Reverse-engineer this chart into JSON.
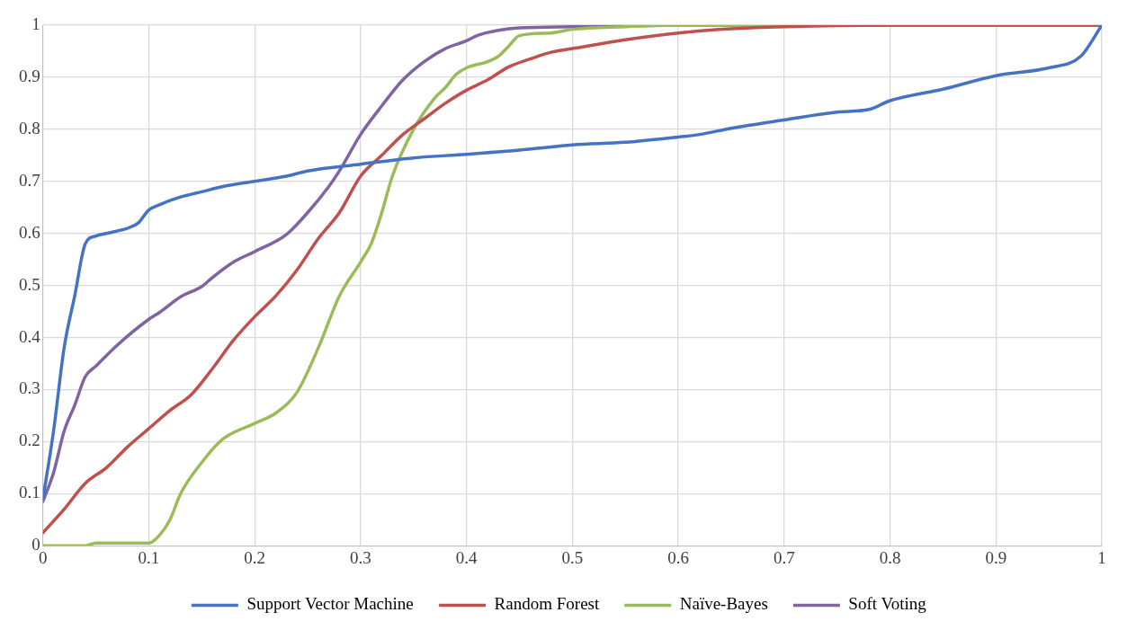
{
  "chart_data": {
    "type": "line",
    "xlim": [
      0,
      1
    ],
    "ylim": [
      0,
      1
    ],
    "xticks": [
      0,
      0.1,
      0.2,
      0.3,
      0.4,
      0.5,
      0.6,
      0.7,
      0.8,
      0.9,
      1
    ],
    "yticks": [
      0,
      0.1,
      0.2,
      0.3,
      0.4,
      0.5,
      0.6,
      0.7,
      0.8,
      0.9,
      1
    ],
    "grid": true,
    "legend": "bottom",
    "marker": "none",
    "line_style": "solid",
    "series": [
      {
        "name": "Support Vector Machine",
        "color": "#4472c4",
        "x": [
          0,
          0.01,
          0.02,
          0.03,
          0.04,
          0.05,
          0.06,
          0.08,
          0.09,
          0.1,
          0.11,
          0.13,
          0.15,
          0.17,
          0.2,
          0.23,
          0.25,
          0.3,
          0.35,
          0.4,
          0.45,
          0.5,
          0.55,
          0.6,
          0.62,
          0.65,
          0.7,
          0.75,
          0.78,
          0.8,
          0.85,
          0.9,
          0.95,
          0.98,
          1
        ],
        "values": [
          0.09,
          0.22,
          0.38,
          0.48,
          0.58,
          0.595,
          0.6,
          0.61,
          0.62,
          0.645,
          0.655,
          0.67,
          0.68,
          0.69,
          0.7,
          0.71,
          0.72,
          0.733,
          0.745,
          0.752,
          0.76,
          0.77,
          0.775,
          0.785,
          0.79,
          0.802,
          0.818,
          0.833,
          0.838,
          0.855,
          0.877,
          0.903,
          0.918,
          0.94,
          1
        ]
      },
      {
        "name": "Random Forest",
        "color": "#c0504d",
        "x": [
          0,
          0.02,
          0.04,
          0.06,
          0.08,
          0.1,
          0.12,
          0.14,
          0.16,
          0.18,
          0.2,
          0.22,
          0.24,
          0.26,
          0.28,
          0.3,
          0.32,
          0.34,
          0.36,
          0.38,
          0.4,
          0.42,
          0.44,
          0.46,
          0.48,
          0.5,
          0.55,
          0.6,
          0.65,
          0.7,
          0.8,
          1
        ],
        "values": [
          0.025,
          0.07,
          0.12,
          0.15,
          0.19,
          0.225,
          0.26,
          0.29,
          0.34,
          0.395,
          0.44,
          0.48,
          0.53,
          0.59,
          0.64,
          0.71,
          0.75,
          0.79,
          0.82,
          0.85,
          0.875,
          0.895,
          0.92,
          0.935,
          0.948,
          0.955,
          0.972,
          0.985,
          0.993,
          0.997,
          1,
          1
        ]
      },
      {
        "name": "Naïve-Bayes",
        "color": "#9bbb59",
        "x": [
          0,
          0.04,
          0.05,
          0.1,
          0.11,
          0.12,
          0.13,
          0.15,
          0.17,
          0.2,
          0.22,
          0.24,
          0.26,
          0.28,
          0.3,
          0.31,
          0.32,
          0.33,
          0.35,
          0.37,
          0.38,
          0.39,
          0.4,
          0.42,
          0.43,
          0.44,
          0.45,
          0.48,
          0.5,
          0.55,
          0.6,
          1
        ],
        "values": [
          0,
          0,
          0.005,
          0.005,
          0.02,
          0.05,
          0.1,
          0.16,
          0.205,
          0.235,
          0.255,
          0.295,
          0.38,
          0.48,
          0.545,
          0.58,
          0.64,
          0.71,
          0.8,
          0.86,
          0.88,
          0.905,
          0.918,
          0.93,
          0.94,
          0.96,
          0.98,
          0.985,
          0.992,
          0.997,
          1,
          1
        ]
      },
      {
        "name": "Soft Voting",
        "color": "#8064a2",
        "x": [
          0,
          0.01,
          0.02,
          0.03,
          0.04,
          0.05,
          0.07,
          0.1,
          0.11,
          0.13,
          0.15,
          0.16,
          0.18,
          0.2,
          0.23,
          0.25,
          0.27,
          0.28,
          0.3,
          0.32,
          0.34,
          0.36,
          0.38,
          0.4,
          0.41,
          0.43,
          0.45,
          0.5,
          0.6,
          1
        ],
        "values": [
          0.085,
          0.14,
          0.22,
          0.27,
          0.325,
          0.345,
          0.385,
          0.435,
          0.448,
          0.478,
          0.498,
          0.515,
          0.545,
          0.565,
          0.598,
          0.64,
          0.69,
          0.72,
          0.79,
          0.845,
          0.895,
          0.93,
          0.955,
          0.97,
          0.98,
          0.99,
          0.995,
          0.997,
          1,
          1
        ]
      }
    ]
  }
}
